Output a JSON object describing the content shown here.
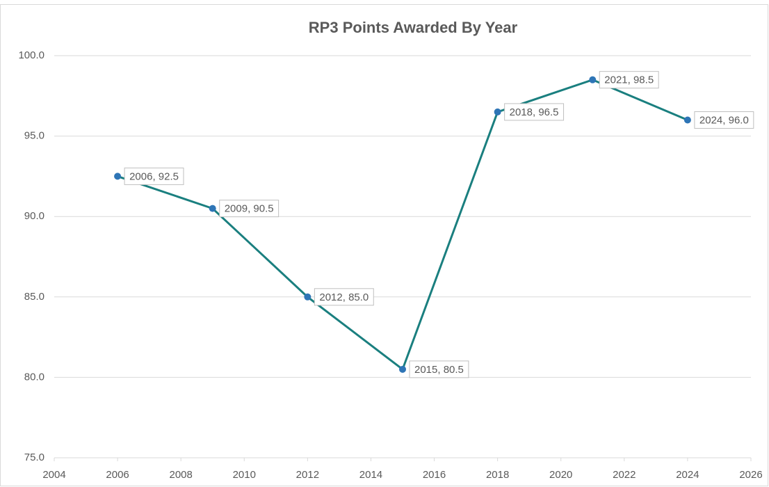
{
  "chart_data": {
    "type": "line",
    "title": "RP3 Points Awarded By Year",
    "x": [
      2006,
      2009,
      2012,
      2015,
      2018,
      2021,
      2024
    ],
    "values": [
      92.5,
      90.5,
      85.0,
      80.5,
      96.5,
      98.5,
      96.0
    ],
    "value_labels": [
      "2006, 92.5",
      "2009, 90.5",
      "2012, 85.0",
      "2015, 80.5",
      "2018, 96.5",
      "2021, 98.5",
      "2024, 96.0"
    ],
    "line_color": "#1a7f7f",
    "marker_color": "#2e75b6",
    "xlim": [
      2004,
      2026
    ],
    "xticks": [
      2004,
      2006,
      2008,
      2010,
      2012,
      2014,
      2016,
      2018,
      2020,
      2022,
      2024,
      2026
    ],
    "ylim": [
      75,
      100
    ],
    "yticks": [
      {
        "value": 75,
        "label": "75.0"
      },
      {
        "value": 80,
        "label": "80.0"
      },
      {
        "value": 85,
        "label": "85.0"
      },
      {
        "value": 90,
        "label": "90.0"
      },
      {
        "value": 95,
        "label": "95.0"
      },
      {
        "value": 100,
        "label": "100.0"
      }
    ],
    "grid": true
  }
}
